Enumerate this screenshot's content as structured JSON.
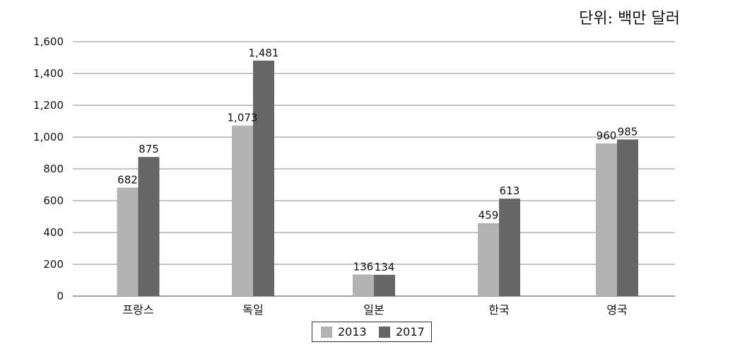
{
  "unit_label": "단위: 백만 달러",
  "colors": {
    "series_2013": "#b3b3b3",
    "series_2017": "#666666",
    "gridline": "#888888"
  },
  "chart_data": {
    "type": "bar",
    "categories": [
      "프랑스",
      "독일",
      "일본",
      "한국",
      "영국"
    ],
    "series": [
      {
        "name": "2013",
        "values": [
          682,
          1073,
          136,
          459,
          960
        ]
      },
      {
        "name": "2017",
        "values": [
          875,
          1481,
          134,
          613,
          985
        ]
      }
    ],
    "value_labels": [
      [
        "682",
        "1,073",
        "136",
        "459",
        "960"
      ],
      [
        "875",
        "1,481",
        "134",
        "613",
        "985"
      ]
    ],
    "y_ticks": [
      0,
      200,
      400,
      600,
      800,
      1000,
      1200,
      1400,
      1600
    ],
    "y_tick_labels": [
      "0",
      "200",
      "400",
      "600",
      "800",
      "1,000",
      "1,200",
      "1,400",
      "1,600"
    ],
    "ylim": [
      0,
      1600
    ],
    "grid": true,
    "legend_position": "bottom-center",
    "title": "",
    "xlabel": "",
    "ylabel": ""
  }
}
